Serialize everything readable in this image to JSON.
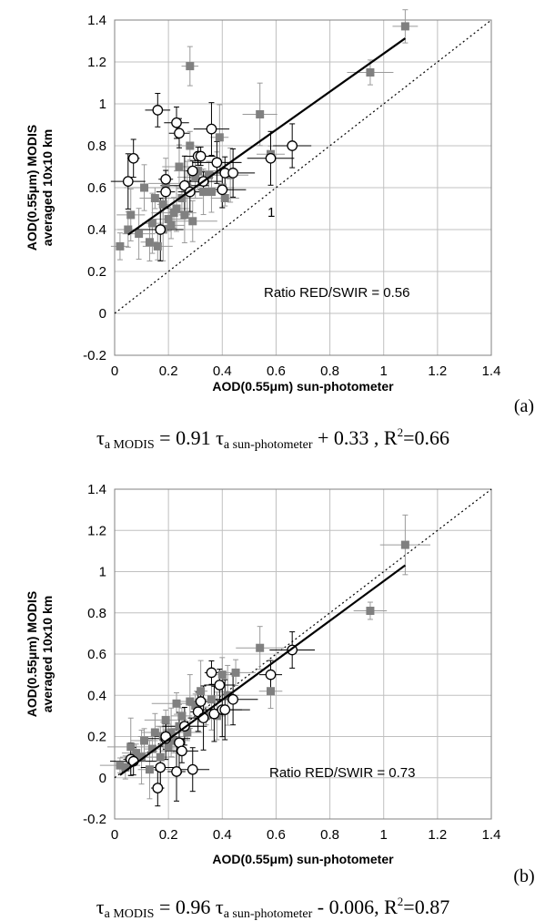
{
  "chart_data": [
    {
      "type": "scatter",
      "panel_label": "(a)",
      "xlabel": "AOD(0.55μm) sun-photometer",
      "ylabel_line1": "AOD(0.55μm) MODIS",
      "ylabel_line2": "averaged 10x10 km",
      "xlim": [
        0,
        1.4
      ],
      "ylim": [
        -0.2,
        1.4
      ],
      "x_ticks": [
        "0",
        "0.2",
        "0.4",
        "0.6",
        "0.8",
        "1",
        "1.2",
        "1.4"
      ],
      "y_ticks": [
        "-0.2",
        "0",
        "0.2",
        "0.4",
        "0.6",
        "0.8",
        "1",
        "1.2",
        "1.4"
      ],
      "grid": true,
      "annotation": "Ratio RED/SWIR = 0.56",
      "one_to_one_label": "1",
      "series": [
        {
          "marker": "filled-square",
          "color": "#808080",
          "points": [
            {
              "x": 0.02,
              "y": 0.32
            },
            {
              "x": 0.05,
              "y": 0.4
            },
            {
              "x": 0.06,
              "y": 0.47
            },
            {
              "x": 0.09,
              "y": 0.38
            },
            {
              "x": 0.11,
              "y": 0.6
            },
            {
              "x": 0.13,
              "y": 0.34
            },
            {
              "x": 0.14,
              "y": 0.43
            },
            {
              "x": 0.15,
              "y": 0.55
            },
            {
              "x": 0.16,
              "y": 0.32
            },
            {
              "x": 0.18,
              "y": 0.4
            },
            {
              "x": 0.18,
              "y": 0.52
            },
            {
              "x": 0.19,
              "y": 0.62
            },
            {
              "x": 0.2,
              "y": 0.45
            },
            {
              "x": 0.21,
              "y": 0.42
            },
            {
              "x": 0.22,
              "y": 0.48
            },
            {
              "x": 0.23,
              "y": 0.5
            },
            {
              "x": 0.24,
              "y": 0.7
            },
            {
              "x": 0.25,
              "y": 0.55
            },
            {
              "x": 0.26,
              "y": 0.47
            },
            {
              "x": 0.27,
              "y": 0.6
            },
            {
              "x": 0.28,
              "y": 0.8
            },
            {
              "x": 0.28,
              "y": 1.18
            },
            {
              "x": 0.29,
              "y": 0.44
            },
            {
              "x": 0.3,
              "y": 0.65
            },
            {
              "x": 0.31,
              "y": 0.68
            },
            {
              "x": 0.33,
              "y": 0.58
            },
            {
              "x": 0.35,
              "y": 0.66
            },
            {
              "x": 0.36,
              "y": 0.58
            },
            {
              "x": 0.38,
              "y": 0.72
            },
            {
              "x": 0.39,
              "y": 0.84
            },
            {
              "x": 0.4,
              "y": 0.6
            },
            {
              "x": 0.41,
              "y": 0.55
            },
            {
              "x": 0.43,
              "y": 0.66
            },
            {
              "x": 0.54,
              "y": 0.95
            },
            {
              "x": 0.58,
              "y": 0.76
            },
            {
              "x": 0.95,
              "y": 1.15
            },
            {
              "x": 1.08,
              "y": 1.37
            }
          ]
        },
        {
          "marker": "open-circle",
          "color": "#000000",
          "points": [
            {
              "x": 0.05,
              "y": 0.63
            },
            {
              "x": 0.07,
              "y": 0.74
            },
            {
              "x": 0.16,
              "y": 0.97
            },
            {
              "x": 0.17,
              "y": 0.4
            },
            {
              "x": 0.19,
              "y": 0.58
            },
            {
              "x": 0.19,
              "y": 0.64
            },
            {
              "x": 0.23,
              "y": 0.91
            },
            {
              "x": 0.24,
              "y": 0.86
            },
            {
              "x": 0.26,
              "y": 0.61
            },
            {
              "x": 0.28,
              "y": 0.58
            },
            {
              "x": 0.29,
              "y": 0.68
            },
            {
              "x": 0.31,
              "y": 0.75
            },
            {
              "x": 0.32,
              "y": 0.75
            },
            {
              "x": 0.33,
              "y": 0.63
            },
            {
              "x": 0.36,
              "y": 0.88
            },
            {
              "x": 0.38,
              "y": 0.72
            },
            {
              "x": 0.4,
              "y": 0.59
            },
            {
              "x": 0.41,
              "y": 0.67
            },
            {
              "x": 0.44,
              "y": 0.67
            },
            {
              "x": 0.58,
              "y": 0.74
            },
            {
              "x": 0.66,
              "y": 0.8
            }
          ]
        }
      ],
      "regression": {
        "slope": 0.91,
        "intercept": 0.33,
        "x_range": [
          0.05,
          1.08
        ]
      },
      "equation": {
        "lhs": "τ",
        "lhs_sub": "a MODIS",
        "mid": " = 0.91 τ",
        "mid_sub": "a sun-photometer",
        "rest": " + 0.33 , R",
        "sup": "2",
        "end": "=0.66"
      }
    },
    {
      "type": "scatter",
      "panel_label": "(b)",
      "xlabel": "AOD(0.55μm) sun-photometer",
      "ylabel_line1": "AOD(0.55μm) MODIS",
      "ylabel_line2": "averaged 10x10 km",
      "xlim": [
        0,
        1.4
      ],
      "ylim": [
        -0.2,
        1.4
      ],
      "x_ticks": [
        "0",
        "0.2",
        "0.4",
        "0.6",
        "0.8",
        "1",
        "1.2",
        "1.4"
      ],
      "y_ticks": [
        "-0.2",
        "0",
        "0.2",
        "0.4",
        "0.6",
        "0.8",
        "1",
        "1.2",
        "1.4"
      ],
      "grid": true,
      "annotation": "Ratio RED/SWIR = 0.73",
      "series": [
        {
          "marker": "filled-square",
          "color": "#808080",
          "points": [
            {
              "x": 0.02,
              "y": 0.06
            },
            {
              "x": 0.04,
              "y": 0.05
            },
            {
              "x": 0.06,
              "y": 0.15
            },
            {
              "x": 0.08,
              "y": 0.12
            },
            {
              "x": 0.1,
              "y": 0.1
            },
            {
              "x": 0.11,
              "y": 0.18
            },
            {
              "x": 0.13,
              "y": 0.04
            },
            {
              "x": 0.14,
              "y": 0.14
            },
            {
              "x": 0.15,
              "y": 0.22
            },
            {
              "x": 0.17,
              "y": 0.1
            },
            {
              "x": 0.18,
              "y": 0.2
            },
            {
              "x": 0.19,
              "y": 0.28
            },
            {
              "x": 0.2,
              "y": 0.15
            },
            {
              "x": 0.21,
              "y": 0.22
            },
            {
              "x": 0.22,
              "y": 0.18
            },
            {
              "x": 0.23,
              "y": 0.36
            },
            {
              "x": 0.24,
              "y": 0.25
            },
            {
              "x": 0.25,
              "y": 0.3
            },
            {
              "x": 0.27,
              "y": 0.22
            },
            {
              "x": 0.28,
              "y": 0.37
            },
            {
              "x": 0.3,
              "y": 0.35
            },
            {
              "x": 0.32,
              "y": 0.42
            },
            {
              "x": 0.34,
              "y": 0.3
            },
            {
              "x": 0.36,
              "y": 0.38
            },
            {
              "x": 0.38,
              "y": 0.3
            },
            {
              "x": 0.4,
              "y": 0.5
            },
            {
              "x": 0.42,
              "y": 0.4
            },
            {
              "x": 0.45,
              "y": 0.51
            },
            {
              "x": 0.54,
              "y": 0.63
            },
            {
              "x": 0.58,
              "y": 0.42
            },
            {
              "x": 0.95,
              "y": 0.81
            },
            {
              "x": 1.08,
              "y": 1.13
            }
          ]
        },
        {
          "marker": "open-circle",
          "color": "#000000",
          "points": [
            {
              "x": 0.06,
              "y": 0.09
            },
            {
              "x": 0.07,
              "y": 0.08
            },
            {
              "x": 0.16,
              "y": -0.05
            },
            {
              "x": 0.17,
              "y": 0.05
            },
            {
              "x": 0.19,
              "y": 0.19
            },
            {
              "x": 0.19,
              "y": 0.2
            },
            {
              "x": 0.23,
              "y": 0.03
            },
            {
              "x": 0.24,
              "y": 0.17
            },
            {
              "x": 0.25,
              "y": 0.13
            },
            {
              "x": 0.26,
              "y": 0.25
            },
            {
              "x": 0.29,
              "y": 0.04
            },
            {
              "x": 0.31,
              "y": 0.32
            },
            {
              "x": 0.32,
              "y": 0.37
            },
            {
              "x": 0.33,
              "y": 0.29
            },
            {
              "x": 0.36,
              "y": 0.51
            },
            {
              "x": 0.37,
              "y": 0.31
            },
            {
              "x": 0.39,
              "y": 0.45
            },
            {
              "x": 0.4,
              "y": 0.33
            },
            {
              "x": 0.41,
              "y": 0.33
            },
            {
              "x": 0.44,
              "y": 0.38
            },
            {
              "x": 0.58,
              "y": 0.5
            },
            {
              "x": 0.66,
              "y": 0.62
            }
          ]
        }
      ],
      "regression": {
        "slope": 0.96,
        "intercept": -0.006,
        "x_range": [
          0.02,
          1.08
        ]
      },
      "equation": {
        "lhs": "τ",
        "lhs_sub": "a MODIS",
        "mid": " = 0.96 τ",
        "mid_sub": "a sun-photometer",
        "rest": " - 0.006, R",
        "sup": "2",
        "end": "=0.87"
      }
    }
  ]
}
